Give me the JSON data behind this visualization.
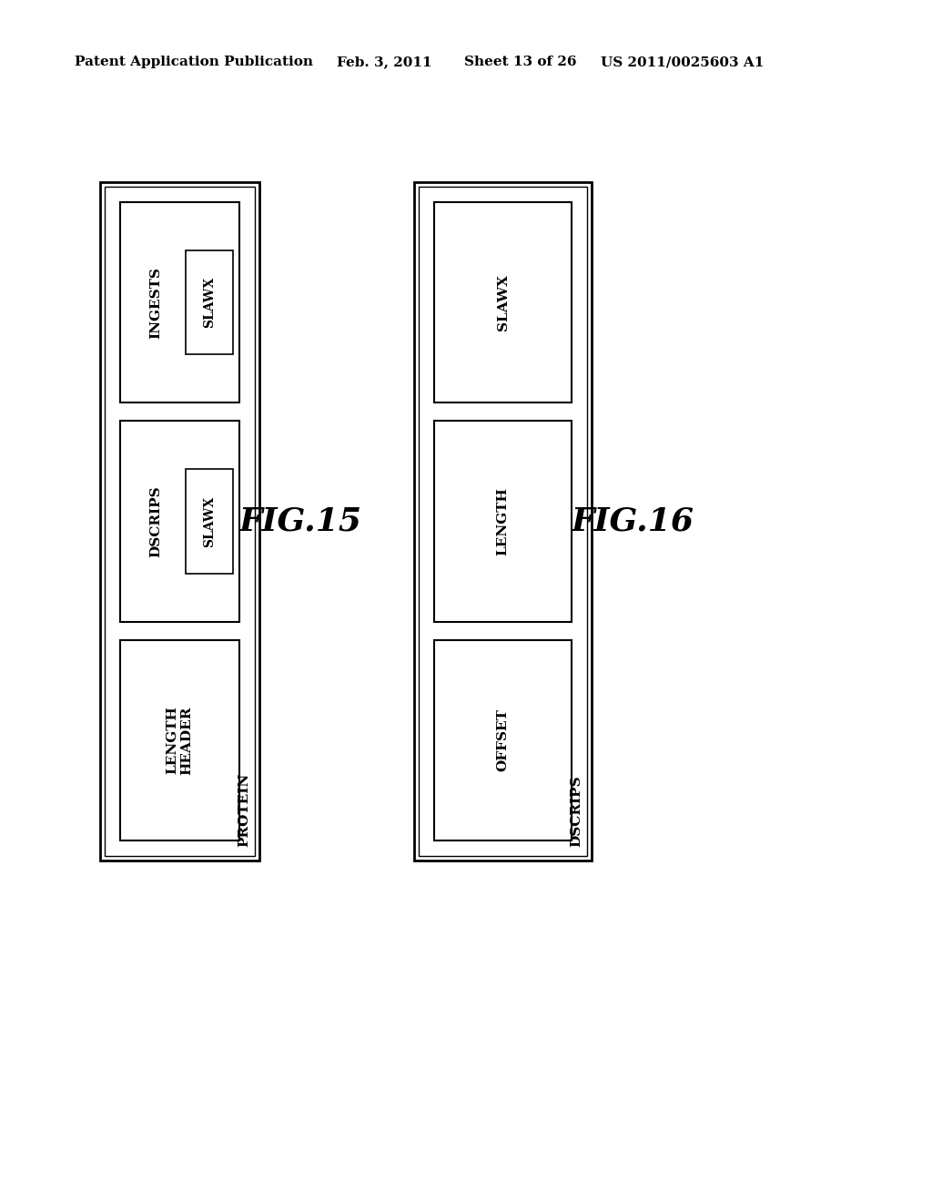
{
  "bg_color": "#ffffff",
  "header_text": "Patent Application Publication",
  "header_date": "Feb. 3, 2011",
  "header_sheet": "Sheet 13 of 26",
  "header_patent": "US 2011/0025603 A1",
  "fig15": {
    "label": "FIG.15",
    "side_label": "PROTEIN",
    "boxes": [
      {
        "label": "INGESTS",
        "inner_label": "SLAWX",
        "has_inner": true
      },
      {
        "label": "DSCRIPS",
        "inner_label": "SLAWX",
        "has_inner": true
      },
      {
        "label": "LENGTH\nHEADER",
        "inner_label": null,
        "has_inner": false
      }
    ]
  },
  "fig16": {
    "label": "FIG.16",
    "side_label": "DSCRIPS",
    "boxes": [
      {
        "label": "SLAWX",
        "inner_label": null,
        "has_inner": false
      },
      {
        "label": "LENGTH",
        "inner_label": null,
        "has_inner": false
      },
      {
        "label": "OFFSET",
        "inner_label": null,
        "has_inner": false
      }
    ]
  }
}
